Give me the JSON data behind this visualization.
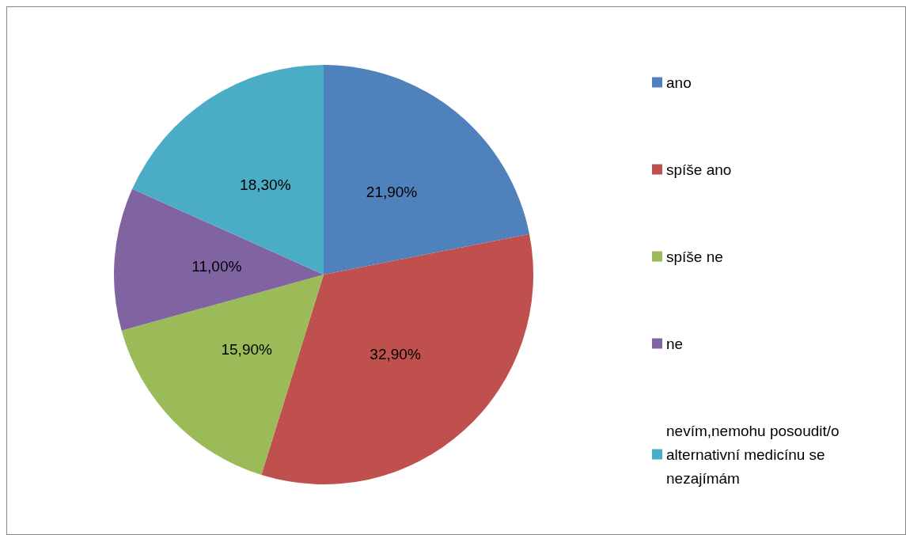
{
  "chart_data": {
    "type": "pie",
    "categories": [
      "ano",
      "spíše ano",
      "spíše ne",
      "ne",
      "nevím,nemohu posoudit/o alternativní medicínu se nezajímám"
    ],
    "values": [
      21.9,
      32.9,
      15.9,
      11.0,
      18.3
    ],
    "colors": [
      "#4f81bd",
      "#c0504d",
      "#9bbb59",
      "#8064a2",
      "#4bacc6"
    ],
    "value_labels": [
      "21,90%",
      "32,90%",
      "15,90%",
      "11,00%",
      "18,30%"
    ],
    "legend": "right"
  }
}
